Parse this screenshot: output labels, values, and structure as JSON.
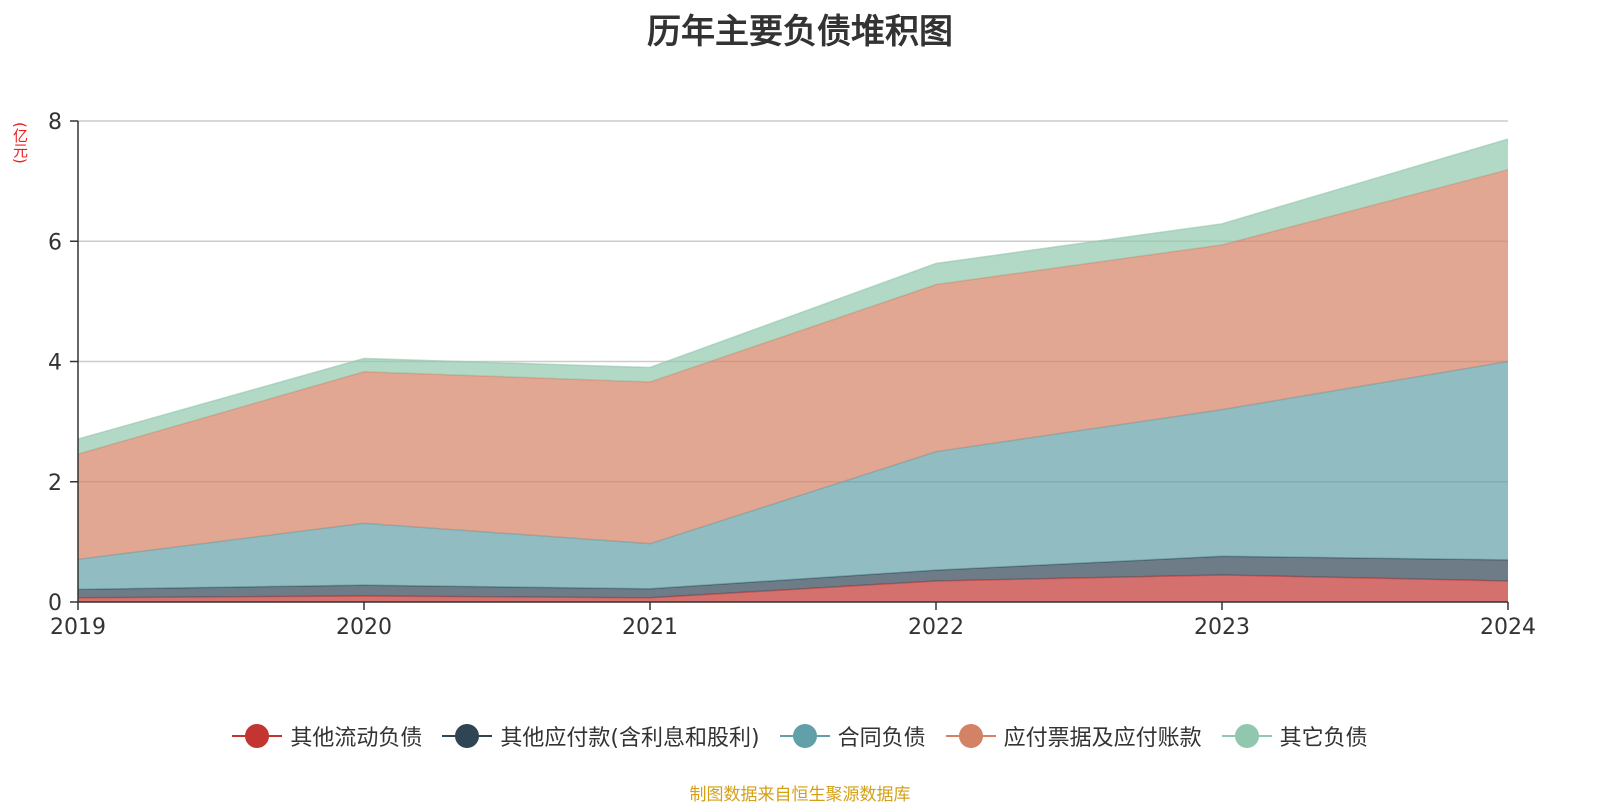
{
  "title": "历年主要负债堆积图",
  "unit_label": "(亿元)",
  "source_label": "制图数据来自恒生聚源数据库",
  "chart_data": {
    "type": "area",
    "stacked": true,
    "title": "历年主要负债堆积图",
    "ylabel": "(亿元)",
    "xlabel": "",
    "ylim": [
      0,
      8
    ],
    "yticks": [
      0,
      2,
      4,
      6,
      8
    ],
    "grid": true,
    "legend_position": "bottom",
    "x": [
      "2019",
      "2020",
      "2021",
      "2022",
      "2023",
      "2024"
    ],
    "series": [
      {
        "name": "其他流动负债",
        "color": "#c23531",
        "values": [
          0.07,
          0.1,
          0.07,
          0.35,
          0.45,
          0.35
        ]
      },
      {
        "name": "其他应付款(含利息和股利)",
        "color": "#2f4554",
        "values": [
          0.14,
          0.18,
          0.15,
          0.18,
          0.31,
          0.35
        ]
      },
      {
        "name": "合同负债",
        "color": "#61a0a8",
        "values": [
          0.5,
          1.03,
          0.75,
          1.97,
          2.44,
          3.3
        ]
      },
      {
        "name": "应付票据及应付账款",
        "color": "#d48265",
        "values": [
          1.75,
          2.52,
          2.69,
          2.78,
          2.74,
          3.19
        ]
      },
      {
        "name": "其它负债",
        "color": "#91c7ae",
        "values": [
          0.25,
          0.22,
          0.24,
          0.35,
          0.35,
          0.51
        ]
      }
    ]
  }
}
